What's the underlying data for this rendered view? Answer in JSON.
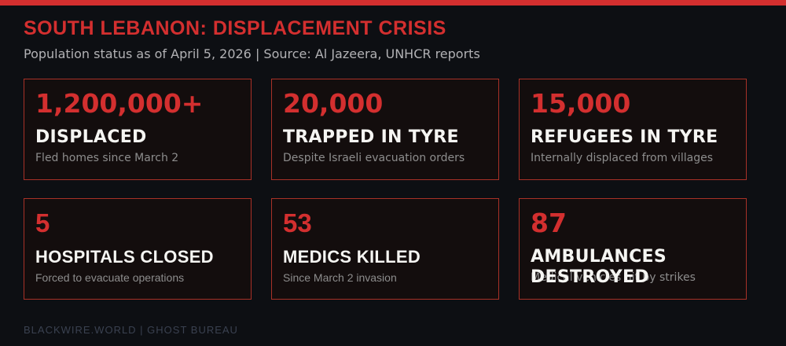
{
  "header": {
    "title": "SOUTH LEBANON: DISPLACEMENT CRISIS",
    "subtitle": "Population status as of April 5, 2026 | Source: Al Jazeera, UNHCR reports"
  },
  "cards": [
    {
      "value": "1,200,000+",
      "label": "DISPLACED",
      "detail": "Fled homes since March 2"
    },
    {
      "value": "20,000",
      "label": "TRAPPED IN TYRE",
      "detail": "Despite Israeli evacuation orders"
    },
    {
      "value": "15,000",
      "label": "REFUGEES IN TYRE",
      "detail": "Internally displaced from villages"
    },
    {
      "value": "5",
      "label": "HOSPITALS CLOSED",
      "detail": "Forced to evacuate operations"
    },
    {
      "value": "53",
      "label": "MEDICS KILLED",
      "detail": "Since March 2 invasion"
    },
    {
      "value": "87",
      "label": "AMBULANCES DESTROYED",
      "detail": "Medical vehicles hit by strikes"
    }
  ],
  "footer": {
    "credit": "BLACKWIRE.WORLD | GHOST BUREAU"
  },
  "colors": {
    "accent_red": "#d32f2f",
    "card_border": "#a83127",
    "card_background": "#130d0d",
    "page_background": "#0d0f13",
    "label_white": "#f5f5f2",
    "detail_gray": "#8d8d8d",
    "subtitle_gray": "#b2b2b5",
    "footer_gray": "#3a4150"
  },
  "chart_data": {
    "type": "table",
    "title": "SOUTH LEBANON: DISPLACEMENT CRISIS",
    "subtitle": "Population status as of April 5, 2026",
    "source": "Al Jazeera, UNHCR reports",
    "categories": [
      "DISPLACED",
      "TRAPPED IN TYRE",
      "REFUGEES IN TYRE",
      "HOSPITALS CLOSED",
      "MEDICS KILLED",
      "AMBULANCES DESTROYED"
    ],
    "values": [
      1200000,
      20000,
      15000,
      5,
      53,
      87
    ],
    "value_labels": [
      "1,200,000+",
      "20,000",
      "15,000",
      "5",
      "53",
      "87"
    ],
    "annotations": [
      "Fled homes since March 2",
      "Despite Israeli evacuation orders",
      "Internally displaced from villages",
      "Forced to evacuate operations",
      "Since March 2 invasion",
      "Medical vehicles hit by strikes"
    ],
    "layout": "2 rows x 3 columns of stat cards"
  }
}
